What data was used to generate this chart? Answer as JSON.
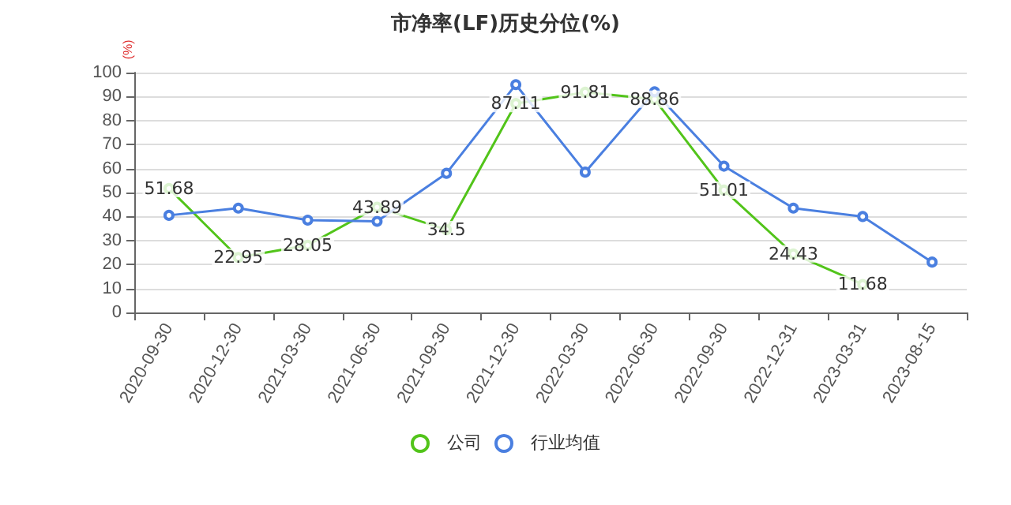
{
  "chart_data": {
    "type": "line",
    "title": "市净率(LF)历史分位(%)",
    "ylabel": "(%)",
    "categories": [
      "2020-09-30",
      "2020-12-30",
      "2021-03-30",
      "2021-06-30",
      "2021-09-30",
      "2021-12-30",
      "2022-03-30",
      "2022-06-30",
      "2022-09-30",
      "2022-12-31",
      "2023-03-31",
      "2023-08-15"
    ],
    "series": [
      {
        "name": "公司",
        "color": "#52c41a",
        "values": [
          51.68,
          22.95,
          28.05,
          43.89,
          34.5,
          87.11,
          91.81,
          88.86,
          51.01,
          24.43,
          11.68,
          null
        ],
        "value_labels": [
          "51.68",
          "22.95",
          "28.05",
          "43.89",
          "34.5",
          "87.11",
          "91.81",
          "88.86",
          "51.01",
          "24.43",
          "11.68",
          null
        ]
      },
      {
        "name": "行业均值",
        "color": "#4a7fe0",
        "values": [
          40.5,
          43.5,
          38.5,
          38,
          58,
          95,
          58.5,
          92,
          61,
          43.5,
          40,
          21
        ]
      }
    ],
    "ylim": [
      0,
      100
    ],
    "yticks": [
      0,
      10,
      20,
      30,
      40,
      50,
      60,
      70,
      80,
      90,
      100
    ],
    "grid": "y",
    "legend": "bottom",
    "marker": "circle",
    "line_style": "solid"
  }
}
